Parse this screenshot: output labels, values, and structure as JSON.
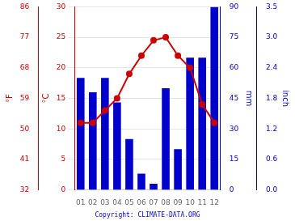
{
  "chart_data": {
    "type": "bar",
    "categories": [
      "01",
      "02",
      "03",
      "04",
      "05",
      "06",
      "07",
      "08",
      "09",
      "10",
      "11",
      "12"
    ],
    "series": [
      {
        "type": "bar",
        "axis": "y2",
        "color": "#0000cc",
        "values": [
          55,
          48,
          55,
          43,
          25,
          8,
          3,
          50,
          20,
          65,
          65,
          90
        ]
      },
      {
        "type": "line",
        "color": "#cc0000",
        "marker": "o",
        "values": [
          11,
          11,
          13,
          15,
          19,
          22,
          24.5,
          25,
          22,
          20,
          14,
          11
        ]
      }
    ],
    "ylabel": "°C",
    "ylim": [
      0,
      30
    ],
    "yticks": [
      0,
      5,
      10,
      15,
      20,
      25,
      30
    ],
    "y2label": "mm",
    "y2lim": [
      0,
      90
    ],
    "y2ticks": [
      0,
      15,
      30,
      45,
      60,
      75,
      90
    ],
    "y3label": "°F",
    "y3lim": [
      0,
      30
    ],
    "y3ticks": [
      {
        "value": 0,
        "label": "32"
      },
      {
        "value": 5,
        "label": "41"
      },
      {
        "value": 10,
        "label": "50"
      },
      {
        "value": 15,
        "label": "59"
      },
      {
        "value": 20,
        "label": "68"
      },
      {
        "value": 25,
        "label": "77"
      },
      {
        "value": 30,
        "label": "86"
      }
    ],
    "y4label": "inch",
    "y4lim": [
      0,
      90
    ],
    "y4ticks": [
      {
        "value": 0,
        "label": "0.0"
      },
      {
        "value": 15,
        "label": "0.6"
      },
      {
        "value": 30,
        "label": "1.2"
      },
      {
        "value": 45,
        "label": "1.8"
      },
      {
        "value": 60,
        "label": "2.4"
      },
      {
        "value": 75,
        "label": "3.0"
      },
      {
        "value": 90,
        "label": "3.5"
      }
    ],
    "grid": true,
    "annotations": [
      "Copyright: CLIMATE-DATA.ORG"
    ]
  }
}
